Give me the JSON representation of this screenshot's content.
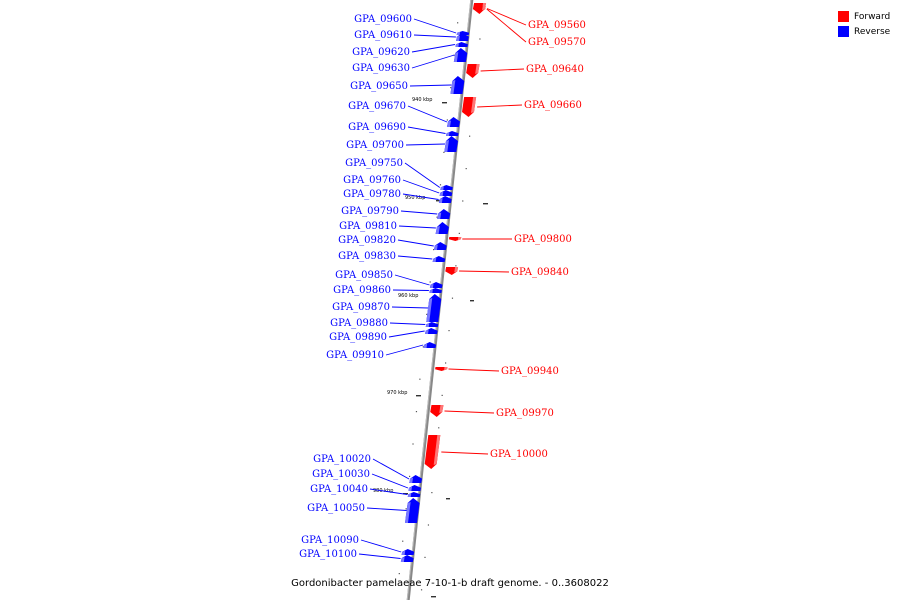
{
  "legend": {
    "forward": {
      "label": "Forward",
      "color": "#ff0000"
    },
    "reverse": {
      "label": "Reverse",
      "color": "#0000ff"
    }
  },
  "caption": "Gordonibacter pamelaeae 7-10-1-b draft genome. - 0..3608022",
  "kbp_ticks": [
    "940 kbp",
    "950 kbp",
    "960 kbp",
    "970 kbp",
    "980 kbp"
  ],
  "genes": [
    {
      "name": "GPA_09560",
      "strand": "forward"
    },
    {
      "name": "GPA_09570",
      "strand": "forward"
    },
    {
      "name": "GPA_09600",
      "strand": "reverse"
    },
    {
      "name": "GPA_09610",
      "strand": "reverse"
    },
    {
      "name": "GPA_09620",
      "strand": "reverse"
    },
    {
      "name": "GPA_09630",
      "strand": "reverse"
    },
    {
      "name": "GPA_09640",
      "strand": "forward"
    },
    {
      "name": "GPA_09650",
      "strand": "reverse"
    },
    {
      "name": "GPA_09660",
      "strand": "forward"
    },
    {
      "name": "GPA_09670",
      "strand": "reverse"
    },
    {
      "name": "GPA_09690",
      "strand": "reverse"
    },
    {
      "name": "GPA_09700",
      "strand": "reverse"
    },
    {
      "name": "GPA_09750",
      "strand": "reverse"
    },
    {
      "name": "GPA_09760",
      "strand": "reverse"
    },
    {
      "name": "GPA_09780",
      "strand": "reverse"
    },
    {
      "name": "GPA_09790",
      "strand": "reverse"
    },
    {
      "name": "GPA_09800",
      "strand": "forward"
    },
    {
      "name": "GPA_09810",
      "strand": "reverse"
    },
    {
      "name": "GPA_09820",
      "strand": "reverse"
    },
    {
      "name": "GPA_09830",
      "strand": "reverse"
    },
    {
      "name": "GPA_09840",
      "strand": "forward"
    },
    {
      "name": "GPA_09850",
      "strand": "reverse"
    },
    {
      "name": "GPA_09860",
      "strand": "reverse"
    },
    {
      "name": "GPA_09870",
      "strand": "reverse"
    },
    {
      "name": "GPA_09880",
      "strand": "reverse"
    },
    {
      "name": "GPA_09890",
      "strand": "reverse"
    },
    {
      "name": "GPA_09910",
      "strand": "reverse"
    },
    {
      "name": "GPA_09940",
      "strand": "forward"
    },
    {
      "name": "GPA_09970",
      "strand": "forward"
    },
    {
      "name": "GPA_10000",
      "strand": "forward"
    },
    {
      "name": "GPA_10020",
      "strand": "reverse"
    },
    {
      "name": "GPA_10030",
      "strand": "reverse"
    },
    {
      "name": "GPA_10040",
      "strand": "reverse"
    },
    {
      "name": "GPA_10050",
      "strand": "reverse"
    },
    {
      "name": "GPA_10090",
      "strand": "reverse"
    },
    {
      "name": "GPA_10100",
      "strand": "reverse"
    }
  ]
}
